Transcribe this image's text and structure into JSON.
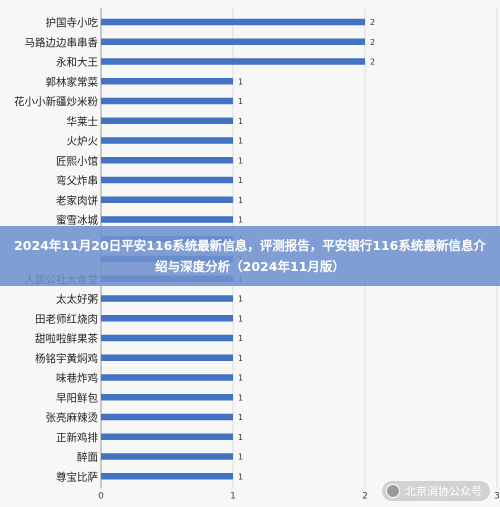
{
  "banner": {
    "text": "2024年11月20日平安116系统最新信息，评测报告，平安银行116系统最新信息介绍与深度分析（2024年11月版）"
  },
  "watermark": {
    "text": "北京消协公众号",
    "icon": "wechat-icon"
  },
  "chart_data": {
    "type": "bar",
    "orientation": "horizontal",
    "categories": [
      "护国寺小吃",
      "马路边边串串香",
      "永和大王",
      "郭林家常菜",
      "花小小新疆炒米粉",
      "华莱士",
      "火炉火",
      "匠熙小馆",
      "弯父炸串",
      "老家肉饼",
      "蜜雪冰城",
      "",
      "",
      "人民公社大食堂",
      "太太好粥",
      "田老师红烧肉",
      "甜啦啦鲜果茶",
      "杨铭宇黄焖鸡",
      "味巷炸鸡",
      "早阳鲜包",
      "张亮麻辣烫",
      "正新鸡排",
      "醉面",
      "尊宝比萨"
    ],
    "values": [
      2,
      2,
      2,
      1,
      1,
      1,
      1,
      1,
      1,
      1,
      1,
      1,
      1,
      1,
      1,
      1,
      1,
      1,
      1,
      1,
      1,
      1,
      1,
      1
    ],
    "xlim": [
      0,
      3
    ],
    "xticks": [
      0,
      1,
      2,
      3
    ],
    "grid": true,
    "bar_color": "#4472c4",
    "title": "",
    "xlabel": "",
    "ylabel": ""
  }
}
